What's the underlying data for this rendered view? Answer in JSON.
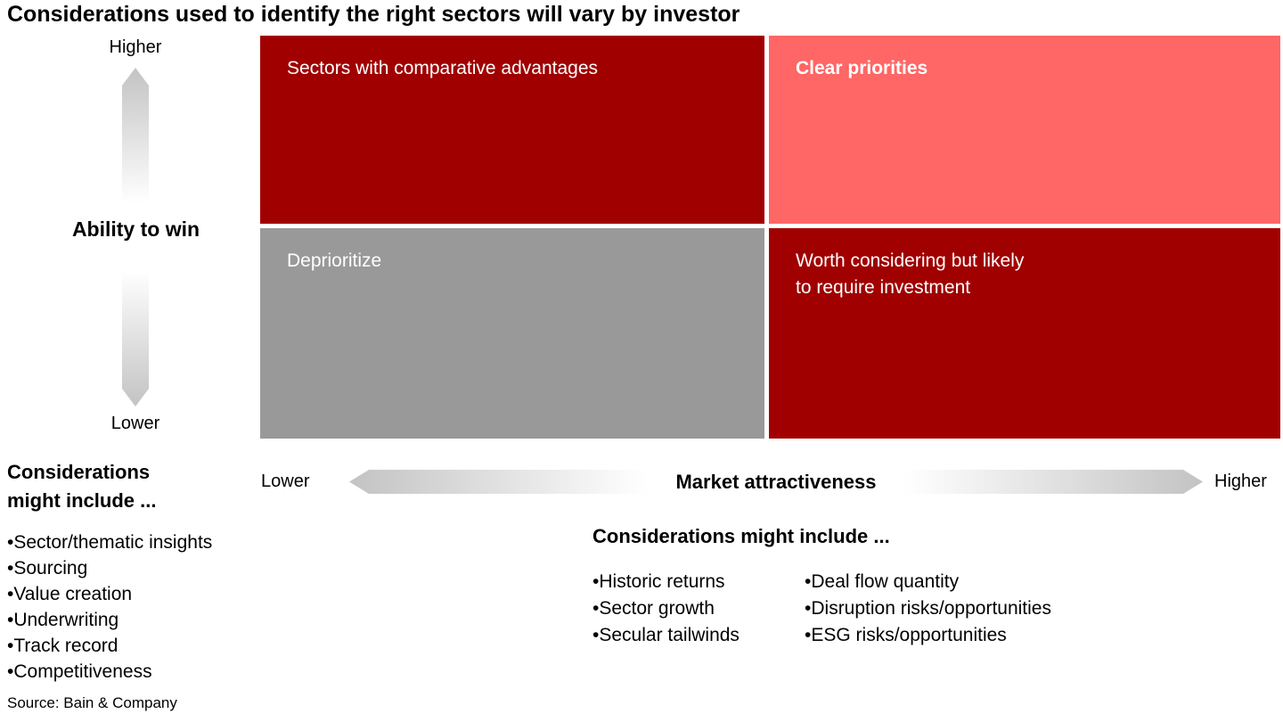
{
  "title": "Considerations used to identify the right sectors will vary by investor",
  "colors": {
    "dark_red": "#A00000",
    "salmon": "#FF6666",
    "gray": "#999999",
    "arrow_gradient_gray": "#C3C3C3",
    "quadrant_text": "#FFFFFF",
    "body_text": "#000000"
  },
  "y_axis": {
    "label": "Ability to win",
    "top_label": "Higher",
    "bottom_label": "Lower"
  },
  "x_axis": {
    "label": "Market attractiveness",
    "left_label": "Lower",
    "right_label": "Higher"
  },
  "quadrants": {
    "top_left": {
      "label": "Sectors with comparative advantages",
      "color": "#A00000"
    },
    "top_right": {
      "label": "Clear priorities",
      "color": "#FF6666"
    },
    "bottom_left": {
      "label": "Deprioritize",
      "color": "#999999"
    },
    "bottom_right": {
      "label_line1": "Worth considering but likely",
      "label_line2": "to require investment",
      "color": "#A00000"
    }
  },
  "ability_considerations": {
    "heading_line1": "Considerations",
    "heading_line2": "might include ...",
    "items": [
      "Sector/thematic insights",
      "Sourcing",
      "Value creation",
      "Underwriting",
      "Track record",
      "Competitiveness"
    ]
  },
  "market_considerations": {
    "heading": "Considerations might include ...",
    "column1": [
      "Historic returns",
      "Sector growth",
      "Secular tailwinds"
    ],
    "column2": [
      "Deal flow quantity",
      "Disruption risks/opportunities",
      "ESG risks/opportunities"
    ]
  },
  "source": "Source: Bain & Company"
}
